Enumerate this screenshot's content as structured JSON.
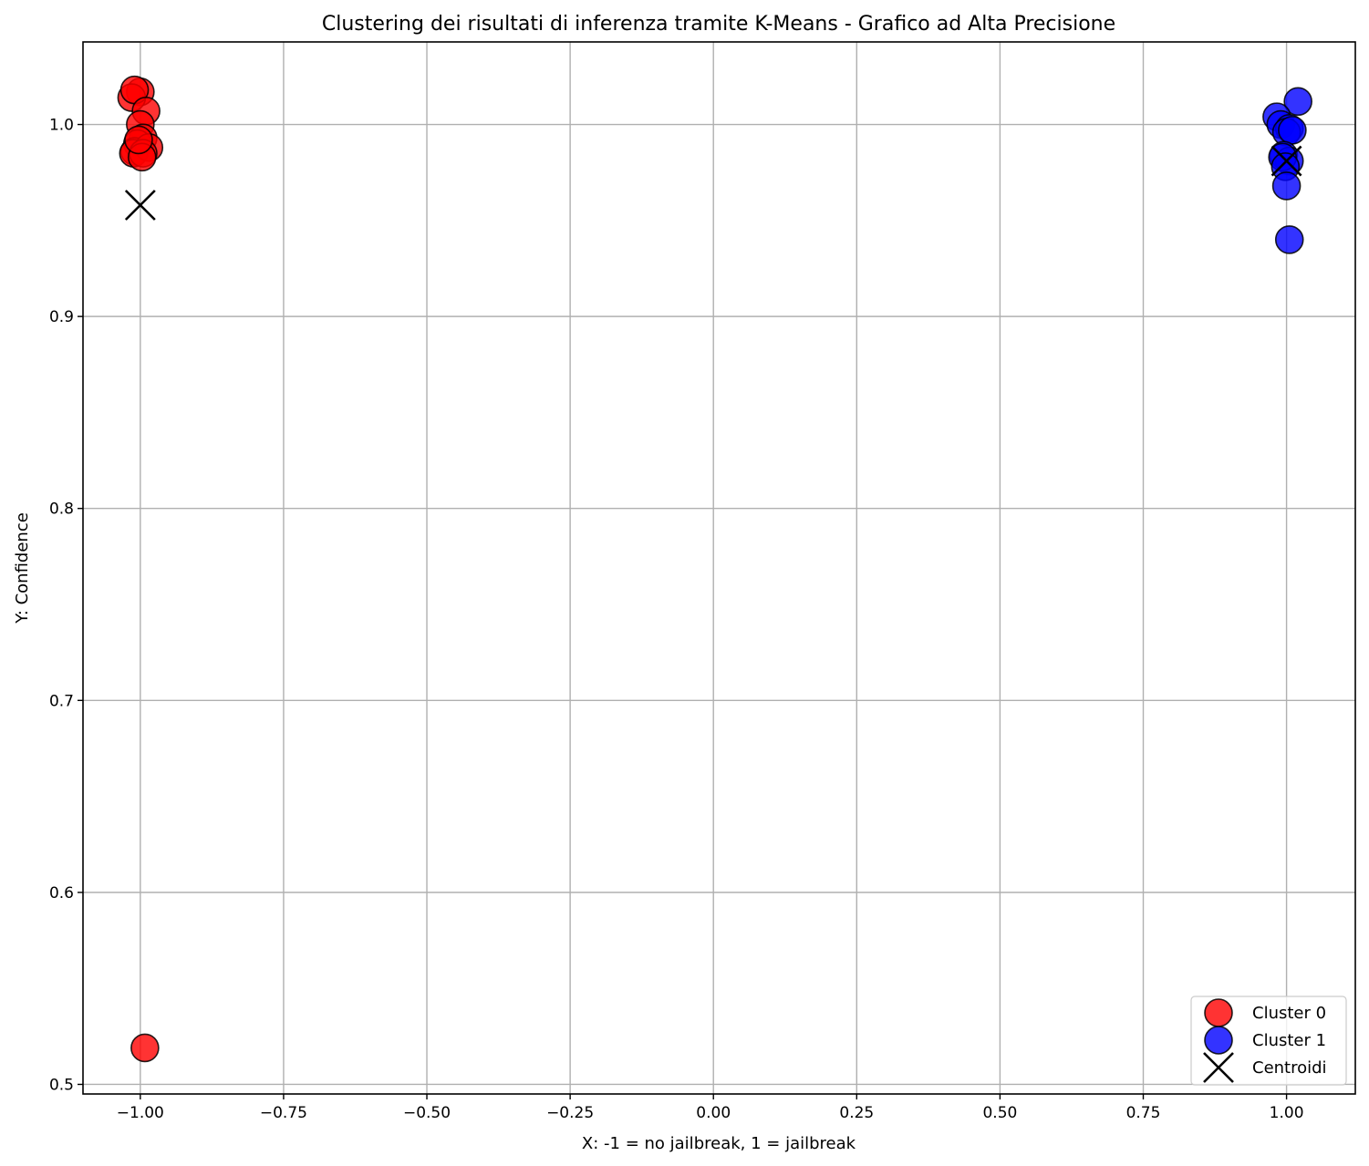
{
  "chart_data": {
    "type": "scatter",
    "title": "Clustering dei risultati di inferenza tramite K-Means - Grafico ad Alta Precisione",
    "xlabel": "X: -1 = no jailbreak, 1 = jailbreak",
    "ylabel": "Y: Confidence",
    "xlim": [
      -1.1,
      1.12
    ],
    "ylim": [
      0.495,
      1.043
    ],
    "xticks": [
      -1.0,
      -0.75,
      -0.5,
      -0.25,
      0.0,
      0.25,
      0.5,
      0.75,
      1.0
    ],
    "xtick_labels": [
      "−1.00",
      "−0.75",
      "−0.50",
      "−0.25",
      "0.00",
      "0.25",
      "0.50",
      "0.75",
      "1.00"
    ],
    "yticks": [
      0.5,
      0.6,
      0.7,
      0.8,
      0.9,
      1.0
    ],
    "ytick_labels": [
      "0.5",
      "0.6",
      "0.7",
      "0.8",
      "0.9",
      "1.0"
    ],
    "grid": true,
    "legend_position": "lower-right",
    "series": [
      {
        "name": "Cluster 0",
        "color": "#ff0000",
        "marker": "circle",
        "points": [
          {
            "x": -1.0,
            "y": 1.017
          },
          {
            "x": -1.015,
            "y": 1.014
          },
          {
            "x": -1.01,
            "y": 1.018
          },
          {
            "x": -0.99,
            "y": 1.007
          },
          {
            "x": -1.0,
            "y": 1.0
          },
          {
            "x": -0.995,
            "y": 0.993
          },
          {
            "x": -1.005,
            "y": 0.99
          },
          {
            "x": -1.01,
            "y": 0.986
          },
          {
            "x": -1.012,
            "y": 0.985
          },
          {
            "x": -0.985,
            "y": 0.988
          },
          {
            "x": -0.995,
            "y": 0.985
          },
          {
            "x": -0.997,
            "y": 0.983
          },
          {
            "x": -1.003,
            "y": 0.992
          },
          {
            "x": -0.992,
            "y": 0.519
          }
        ]
      },
      {
        "name": "Cluster 1",
        "color": "#0000ff",
        "marker": "circle",
        "points": [
          {
            "x": 1.02,
            "y": 1.012
          },
          {
            "x": 0.983,
            "y": 1.004
          },
          {
            "x": 0.99,
            "y": 1.0
          },
          {
            "x": 1.005,
            "y": 0.998
          },
          {
            "x": 1.0,
            "y": 0.996
          },
          {
            "x": 1.01,
            "y": 0.997
          },
          {
            "x": 0.995,
            "y": 0.984
          },
          {
            "x": 1.005,
            "y": 0.981
          },
          {
            "x": 0.993,
            "y": 0.983
          },
          {
            "x": 0.998,
            "y": 0.978
          },
          {
            "x": 1.0,
            "y": 0.968
          },
          {
            "x": 1.005,
            "y": 0.94
          }
        ]
      },
      {
        "name": "Centroidi",
        "color": "#000000",
        "marker": "x",
        "points": [
          {
            "x": -1.0,
            "y": 0.958
          },
          {
            "x": 1.0,
            "y": 0.981
          }
        ]
      }
    ]
  }
}
